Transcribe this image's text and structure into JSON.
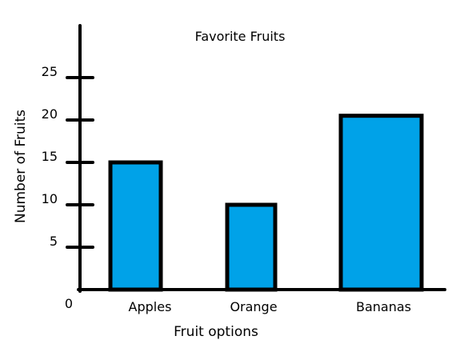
{
  "chart_data": {
    "type": "bar",
    "title": "Favorite Fruits",
    "xlabel": "Fruit options",
    "ylabel": "Number of Fruits",
    "categories": [
      "Apples",
      "Orange",
      "Bananas"
    ],
    "values": [
      15,
      10,
      20.5
    ],
    "yticks": [
      5,
      10,
      15,
      20,
      25
    ],
    "origin_label": "0",
    "ylim": [
      0,
      32
    ],
    "grid": false,
    "bar_color": "#00a2e8",
    "bar_outline": "#000000"
  }
}
